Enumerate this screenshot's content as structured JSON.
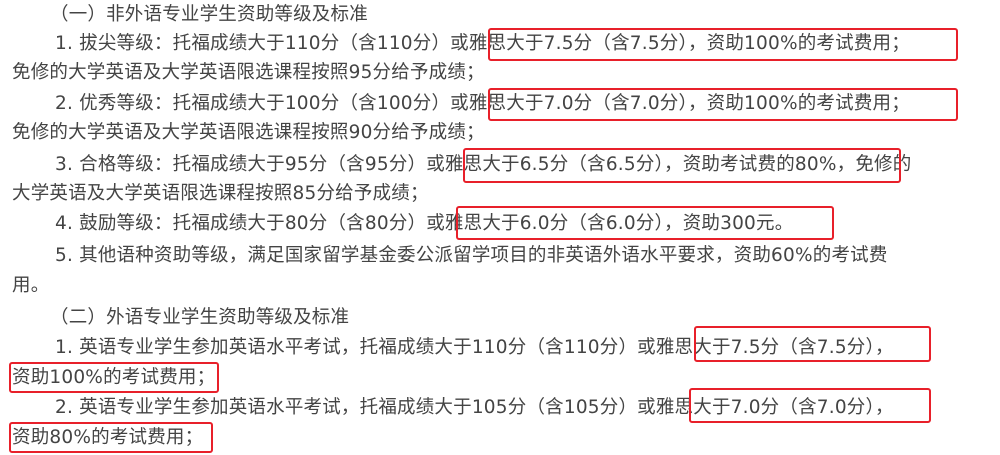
{
  "document": {
    "lines": [
      "（一）非外语专业学生资助等级及标准",
      "1. 拔尖等级：托福成绩大于110分（含110分）或雅思大于7.5分（含7.5分），资助100%的考试费用；",
      "免修的大学英语及大学英语限选课程按照95分给予成绩；",
      "2. 优秀等级：托福成绩大于100分（含100分）或雅思大于7.0分（含7.0分），资助100%的考试费用；",
      "免修的大学英语及大学英语限选课程按照90分给予成绩；",
      "3. 合格等级：托福成绩大于95分（含95分）或雅思大于6.5分（含6.5分），资助考试费的80%，免修的",
      "大学英语及大学英语限选课程按照85分给予成绩；",
      "4. 鼓励等级：托福成绩大于80分（含80分）或雅思大于6.0分（含6.0分），资助300元。",
      "5. 其他语种资助等级，满足国家留学基金委公派留学项目的非英语外语水平要求，资助60%的考试费",
      "用。",
      "（二）外语专业学生资助等级及标准",
      "1. 英语专业学生参加英语水平考试，托福成绩大于110分（含110分）或雅思大于7.5分（含7.5分），",
      "资助100%的考试费用；",
      "2. 英语专业学生参加英语水平考试，托福成绩大于105分（含105分）或雅思大于7.0分（含7.0分），",
      "资助80%的考试费用；"
    ],
    "highlight_color": "#e8202a"
  }
}
